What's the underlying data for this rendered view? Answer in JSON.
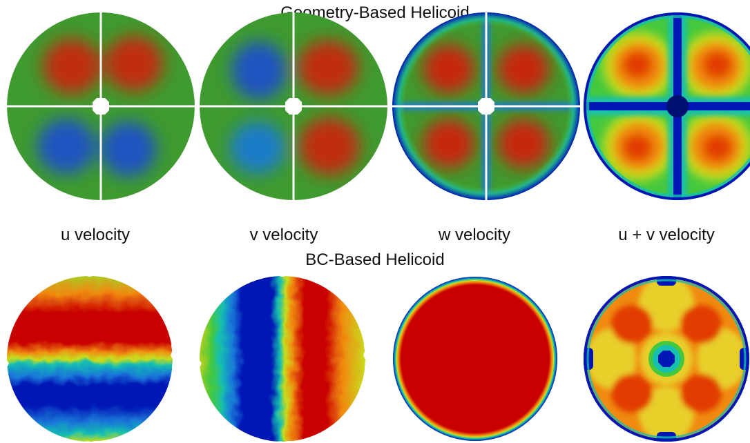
{
  "titles": {
    "geometry": "Geometry-Based Helicoid",
    "bc": "BC-Based Helicoid"
  },
  "labels": [
    "u velocity",
    "v velocity",
    "w velocity",
    "u + v velocity"
  ],
  "colormap": [
    "#0016b5",
    "#1a78d8",
    "#16bfb0",
    "#45c83d",
    "#c8dc1e",
    "#f08a10",
    "#c90000"
  ],
  "panels": [
    {
      "row": "geometry",
      "field": "u velocity",
      "background": "#3f9a2f"
    },
    {
      "row": "geometry",
      "field": "v velocity",
      "background": "#3f9a2f"
    },
    {
      "row": "geometry",
      "field": "w velocity",
      "background": "#3f9a2f"
    },
    {
      "row": "geometry",
      "field": "u + v velocity",
      "background": "#45c83d"
    },
    {
      "row": "bc",
      "field": "u velocity",
      "background": "#aacb22"
    },
    {
      "row": "bc",
      "field": "v velocity",
      "background": "#b3cf1f"
    },
    {
      "row": "bc",
      "field": "w velocity",
      "background": "#c90000"
    },
    {
      "row": "bc",
      "field": "u + v velocity",
      "background": "#f08a10"
    }
  ]
}
